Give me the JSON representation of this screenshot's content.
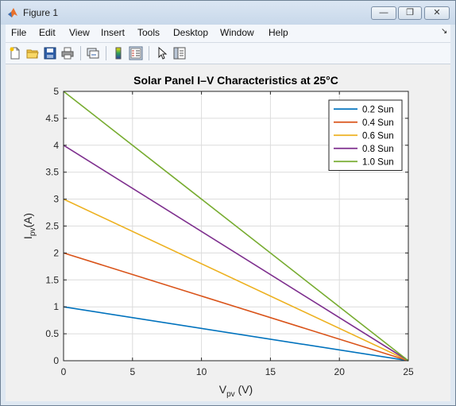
{
  "window": {
    "title": "Figure 1"
  },
  "menu": {
    "items": [
      "File",
      "Edit",
      "View",
      "Insert",
      "Tools",
      "Desktop",
      "Window",
      "Help"
    ]
  },
  "toolbar": {
    "icons": [
      "new-file-icon",
      "open-folder-icon",
      "save-icon",
      "print-icon",
      "link-icon",
      "colorbar-icon",
      "legend-icon",
      "pointer-icon",
      "property-editor-icon"
    ]
  },
  "chart_data": {
    "type": "line",
    "title": "Solar Panel I–V Characteristics at 25°C",
    "xlabel_main": "V",
    "xlabel_sub": "pv",
    "xlabel_unit": " (V)",
    "ylabel_main": "I",
    "ylabel_sub": "pv",
    "ylabel_unit": "(A)",
    "xlim": [
      0,
      25
    ],
    "ylim": [
      0,
      5
    ],
    "xticks": [
      0,
      5,
      10,
      15,
      20,
      25
    ],
    "yticks": [
      0,
      0.5,
      1,
      1.5,
      2,
      2.5,
      3,
      3.5,
      4,
      4.5,
      5
    ],
    "grid": true,
    "legend_location": "top-right",
    "series": [
      {
        "name": "0.2 Sun",
        "color": "#0072BD",
        "x": [
          0,
          25
        ],
        "y": [
          1,
          0
        ]
      },
      {
        "name": "0.4 Sun",
        "color": "#D95319",
        "x": [
          0,
          25
        ],
        "y": [
          2,
          0
        ]
      },
      {
        "name": "0.6 Sun",
        "color": "#EDB120",
        "x": [
          0,
          25
        ],
        "y": [
          3,
          0
        ]
      },
      {
        "name": "0.8 Sun",
        "color": "#7E2F8E",
        "x": [
          0,
          25
        ],
        "y": [
          4,
          0
        ]
      },
      {
        "name": "1.0 Sun",
        "color": "#77AC30",
        "x": [
          0,
          25
        ],
        "y": [
          5,
          0
        ]
      }
    ]
  }
}
